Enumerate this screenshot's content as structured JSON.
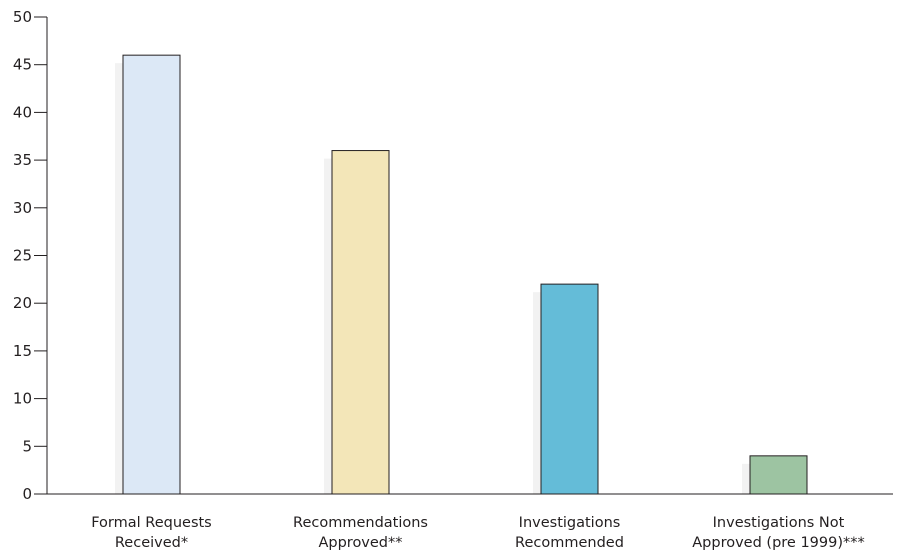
{
  "chart_data": {
    "type": "bar",
    "categories": [
      [
        "Formal Requests",
        "Received*"
      ],
      [
        "Recommendations",
        "Approved**"
      ],
      [
        "Investigations",
        "Recommended"
      ],
      [
        "Investigations Not",
        "Approved (pre 1999)***"
      ]
    ],
    "values": [
      46,
      36,
      22,
      4
    ],
    "colors": [
      "#dce8f6",
      "#f3e6b8",
      "#64bcd8",
      "#9dc4a2"
    ],
    "ylim": [
      0,
      50
    ],
    "yticks": [
      0,
      5,
      10,
      15,
      20,
      25,
      30,
      35,
      40,
      45,
      50
    ],
    "title": "",
    "xlabel": "",
    "ylabel": "",
    "grid": false
  }
}
